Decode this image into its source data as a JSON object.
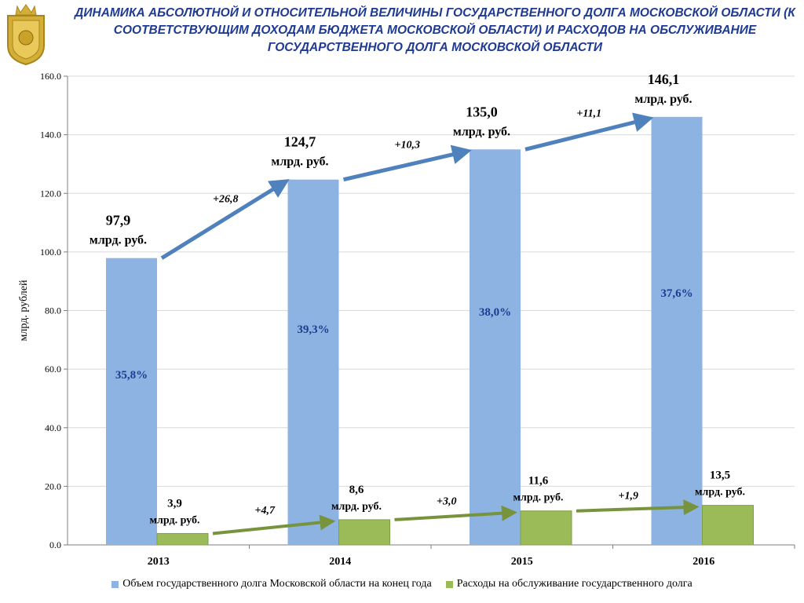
{
  "title": "ДИНАМИКА АБСОЛЮТНОЙ И ОТНОСИТЕЛЬНОЙ ВЕЛИЧИНЫ ГОСУДАРСТВЕННОГО ДОЛГА МОСКОВСКОЙ ОБЛАСТИ (К СООТВЕТСТВУЮЩИМ ДОХОДАМ БЮДЖЕТА МОСКОВСКОЙ ОБЛАСТИ) И РАСХОДОВ НА ОБСЛУЖИВАНИЕ ГОСУДАРСТВЕННОГО ДОЛГА МОСКОВСКОЙ ОБЛАСТИ",
  "colors": {
    "title": "#1f3a93",
    "debt_bar": "#8db3e2",
    "service_bar": "#9bbb59",
    "debt_arrow": "#4f81bd",
    "service_arrow": "#77933c",
    "pct_text": "#1f3a93",
    "logo_gold": "#c9a227"
  },
  "chart_data": {
    "type": "bar",
    "categories": [
      "2013",
      "2014",
      "2015",
      "2016"
    ],
    "ylabel": "млрд. рублей",
    "ylim": [
      0,
      160
    ],
    "yticks": [
      "0.0",
      "20.0",
      "40.0",
      "60.0",
      "80.0",
      "100.0",
      "120.0",
      "140.0",
      "160.0"
    ],
    "grid": true,
    "legend_position": "bottom",
    "series": [
      {
        "name": "Объем государственного долга Московской области на конец года",
        "values": [
          97.9,
          124.7,
          135.0,
          146.1
        ],
        "value_labels": [
          "97,9",
          "124,7",
          "135,0",
          "146,1"
        ],
        "unit_label": "млрд. руб.",
        "pct_labels": [
          "35,8%",
          "39,3%",
          "38,0%",
          "37,6%"
        ],
        "increments": [
          "+26,8",
          "+10,3",
          "+11,1"
        ]
      },
      {
        "name": "Расходы на обслуживание государственного долга",
        "values": [
          3.9,
          8.6,
          11.6,
          13.5
        ],
        "value_labels": [
          "3,9",
          "8,6",
          "11,6",
          "13,5"
        ],
        "unit_label": "млрд. руб.",
        "increments": [
          "+4,7",
          "+3,0",
          "+1,9"
        ]
      }
    ]
  }
}
